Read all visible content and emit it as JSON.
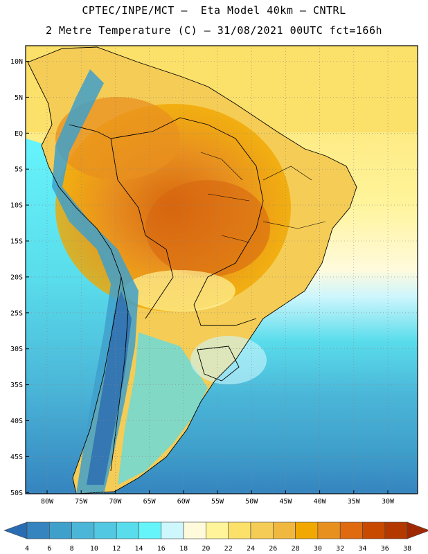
{
  "header": {
    "line1": "CPTEC/INPE/MCT –  Eta Model 40km – CNTRL",
    "line2": "2 Metre Temperature (C) – 31/08/2021 00UTC fct=166h"
  },
  "axes": {
    "lat_labels": [
      "10N",
      "5N",
      "EQ",
      "5S",
      "10S",
      "15S",
      "20S",
      "25S",
      "30S",
      "35S",
      "40S",
      "45S",
      "50S"
    ],
    "lon_labels": [
      "80W",
      "75W",
      "70W",
      "65W",
      "60W",
      "55W",
      "50W",
      "45W",
      "40W",
      "35W",
      "30W"
    ]
  },
  "legend": {
    "values": [
      "4",
      "6",
      "8",
      "10",
      "12",
      "14",
      "16",
      "18",
      "20",
      "22",
      "24",
      "26",
      "28",
      "30",
      "32",
      "34",
      "36",
      "38"
    ],
    "colors": [
      "#2a6cb2",
      "#3584bf",
      "#3fa0cb",
      "#4bb6d8",
      "#52c8e2",
      "#59dceb",
      "#66f4fb",
      "#cdf6fd",
      "#fffadc",
      "#fff49a",
      "#fbe06a",
      "#f5cc55",
      "#f0b83f",
      "#f1a800",
      "#e8901f",
      "#e06a10",
      "#c84a00",
      "#b33900",
      "#a02800"
    ]
  }
}
